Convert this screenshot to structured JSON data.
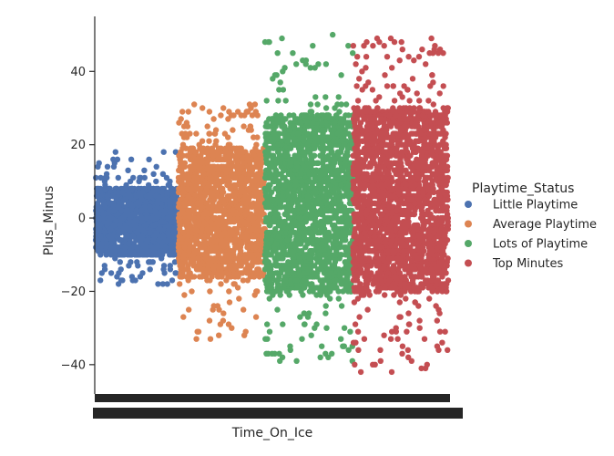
{
  "chart_data": {
    "type": "scatter",
    "style": "strip",
    "title": "",
    "xlabel": "Time_On_Ice",
    "ylabel": "Plus_Minus",
    "ylim": [
      -48,
      55
    ],
    "yticks": [
      -40,
      -20,
      0,
      20,
      40
    ],
    "grid": false,
    "legend_title": "Playtime_Status",
    "legend_placement": "right",
    "series": [
      {
        "name": "Little Playtime",
        "color": "#4c72b0",
        "xrange": [
          0,
          0.235
        ],
        "core": [
          -10,
          8
        ],
        "spread": [
          -18,
          18
        ]
      },
      {
        "name": "Average Playtime",
        "color": "#dd8452",
        "xrange": [
          0.235,
          0.48
        ],
        "core": [
          -16,
          19
        ],
        "spread": [
          -33,
          31
        ]
      },
      {
        "name": "Lots of Playtime",
        "color": "#55a868",
        "xrange": [
          0.48,
          0.73
        ],
        "core": [
          -20,
          28
        ],
        "spread": [
          -39,
          50
        ]
      },
      {
        "name": "Top Minutes",
        "color": "#c44e52",
        "xrange": [
          0.73,
          1.0
        ],
        "core": [
          -20,
          30
        ],
        "spread": [
          -42,
          49
        ]
      }
    ]
  }
}
